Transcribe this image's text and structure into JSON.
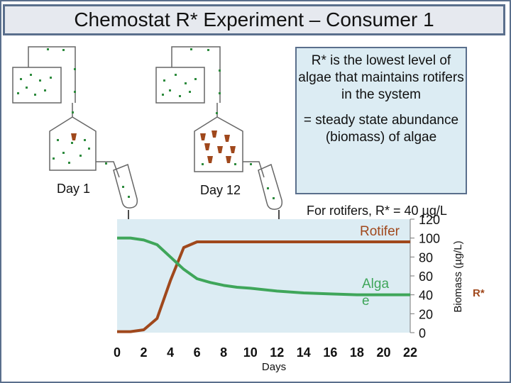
{
  "header": {
    "title": "Chemostat R* Experiment – Consumer 1"
  },
  "labels": {
    "day1": "Day 1",
    "day12": "Day 12"
  },
  "definition": {
    "line1": "R* is the lowest level of algae that maintains rotifers in the system",
    "line2": "= steady state abundance (biomass) of algae"
  },
  "note": {
    "rotifers": "For rotifers, R* = 40 µg/L"
  },
  "colors": {
    "rotifer": "#a0481c",
    "algae": "#3fa65a",
    "plot_bg": "#dcecf3",
    "frame": "#5a6f8c",
    "algae_dots": "#2e8b3e"
  },
  "chart_data": {
    "type": "line",
    "xlabel": "Days",
    "ylabel": "Biomass (µg/L)",
    "xlim": [
      0,
      22
    ],
    "ylim": [
      0,
      120
    ],
    "x_ticks": [
      0,
      2,
      4,
      6,
      8,
      10,
      12,
      14,
      16,
      18,
      20,
      22
    ],
    "y_ticks": [
      0,
      20,
      40,
      60,
      80,
      100,
      120
    ],
    "annotation": "R*",
    "series": [
      {
        "name": "Rotifer",
        "x": [
          0,
          1,
          2,
          3,
          4,
          5,
          6,
          8,
          10,
          12,
          14,
          16,
          18,
          20,
          22
        ],
        "y": [
          1,
          1,
          3,
          15,
          55,
          90,
          96,
          96,
          96,
          96,
          96,
          96,
          96,
          96,
          96
        ]
      },
      {
        "name": "Alga e",
        "x": [
          0,
          1,
          2,
          3,
          4,
          5,
          6,
          7,
          8,
          9,
          10,
          12,
          14,
          16,
          18,
          20,
          22
        ],
        "y": [
          100,
          100,
          98,
          93,
          80,
          67,
          57,
          53,
          50,
          48,
          47,
          44,
          42,
          41,
          40,
          40,
          40
        ]
      }
    ]
  }
}
